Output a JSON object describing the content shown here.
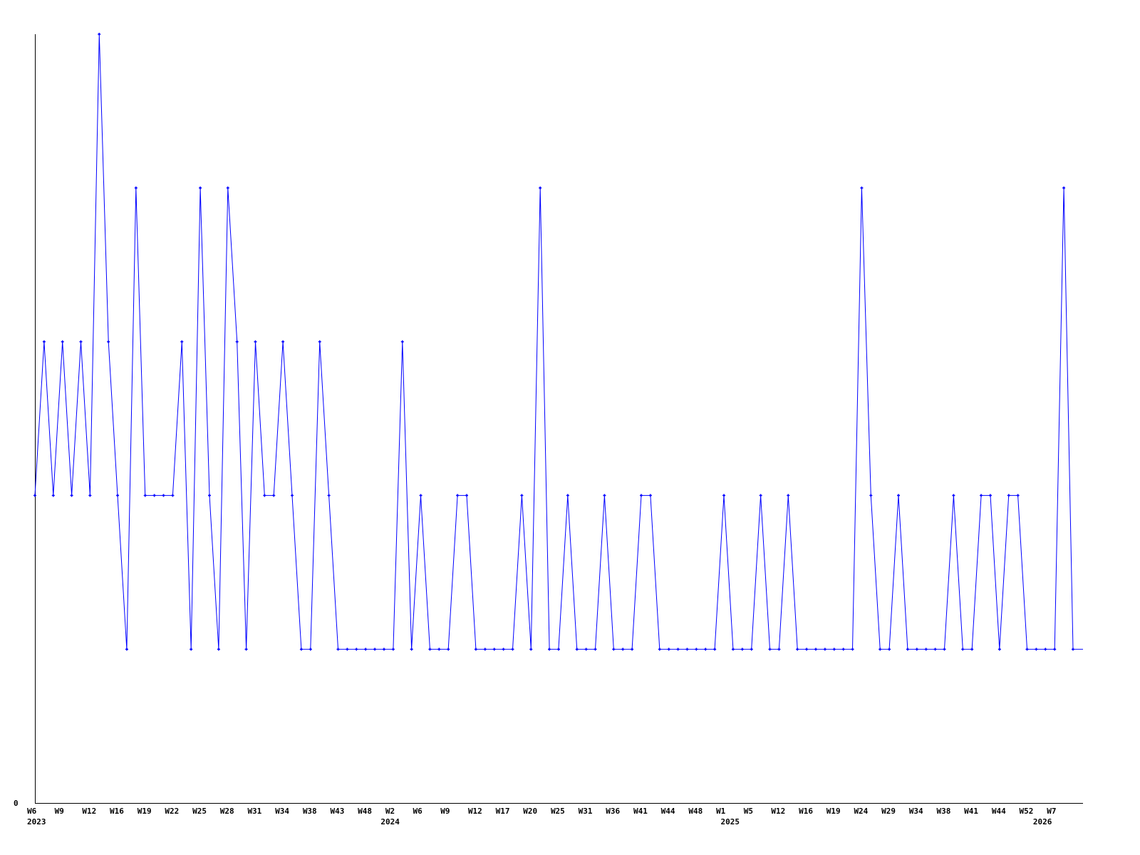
{
  "chart_data": {
    "type": "line",
    "title": "",
    "xlabel": "",
    "ylabel": "",
    "ylim": [
      0,
      5
    ],
    "y_tick_labels": [
      "0"
    ],
    "grid": false,
    "legend": "none",
    "series_color": "#0000ff",
    "axis_color": "#000000",
    "values": [
      2,
      3,
      2,
      3,
      2,
      3,
      2,
      5,
      3,
      2,
      1,
      4,
      2,
      2,
      2,
      2,
      3,
      1,
      4,
      2,
      1,
      4,
      3,
      1,
      3,
      2,
      2,
      3,
      2,
      1,
      1,
      3,
      2,
      1,
      1,
      1,
      1,
      1,
      1,
      1,
      3,
      1,
      2,
      1,
      1,
      1,
      2,
      2,
      1,
      1,
      1,
      1,
      1,
      2,
      1,
      4,
      1,
      1,
      2,
      1,
      1,
      1,
      2,
      1,
      1,
      1,
      2,
      2,
      1,
      1,
      1,
      1,
      1,
      1,
      1,
      2,
      1,
      1,
      1,
      2,
      1,
      1,
      2,
      1,
      1,
      1,
      1,
      1,
      1,
      1,
      4,
      2,
      1,
      1,
      2,
      1,
      1,
      1,
      1,
      1,
      2,
      1,
      1,
      2,
      2,
      1,
      2,
      2,
      1,
      1,
      1,
      1,
      4,
      1
    ],
    "x_tick_labels": [
      "W6",
      "W9",
      "W12",
      "W16",
      "W19",
      "W22",
      "W25",
      "W28",
      "W31",
      "W34",
      "W38",
      "W43",
      "W48",
      "W2",
      "W6",
      "W9",
      "W12",
      "W17",
      "W20",
      "W25",
      "W31",
      "W36",
      "W41",
      "W44",
      "W48",
      "W1",
      "W5",
      "W12",
      "W16",
      "W19",
      "W24",
      "W29",
      "W34",
      "W38",
      "W41",
      "W44",
      "W52",
      "W7"
    ],
    "x_tick_every": 3,
    "year_labels": [
      {
        "label": "2023",
        "index": 0
      },
      {
        "label": "2024",
        "index": 38.5
      },
      {
        "label": "2025",
        "index": 75.5
      },
      {
        "label": "2026",
        "index": 109.5
      }
    ]
  }
}
